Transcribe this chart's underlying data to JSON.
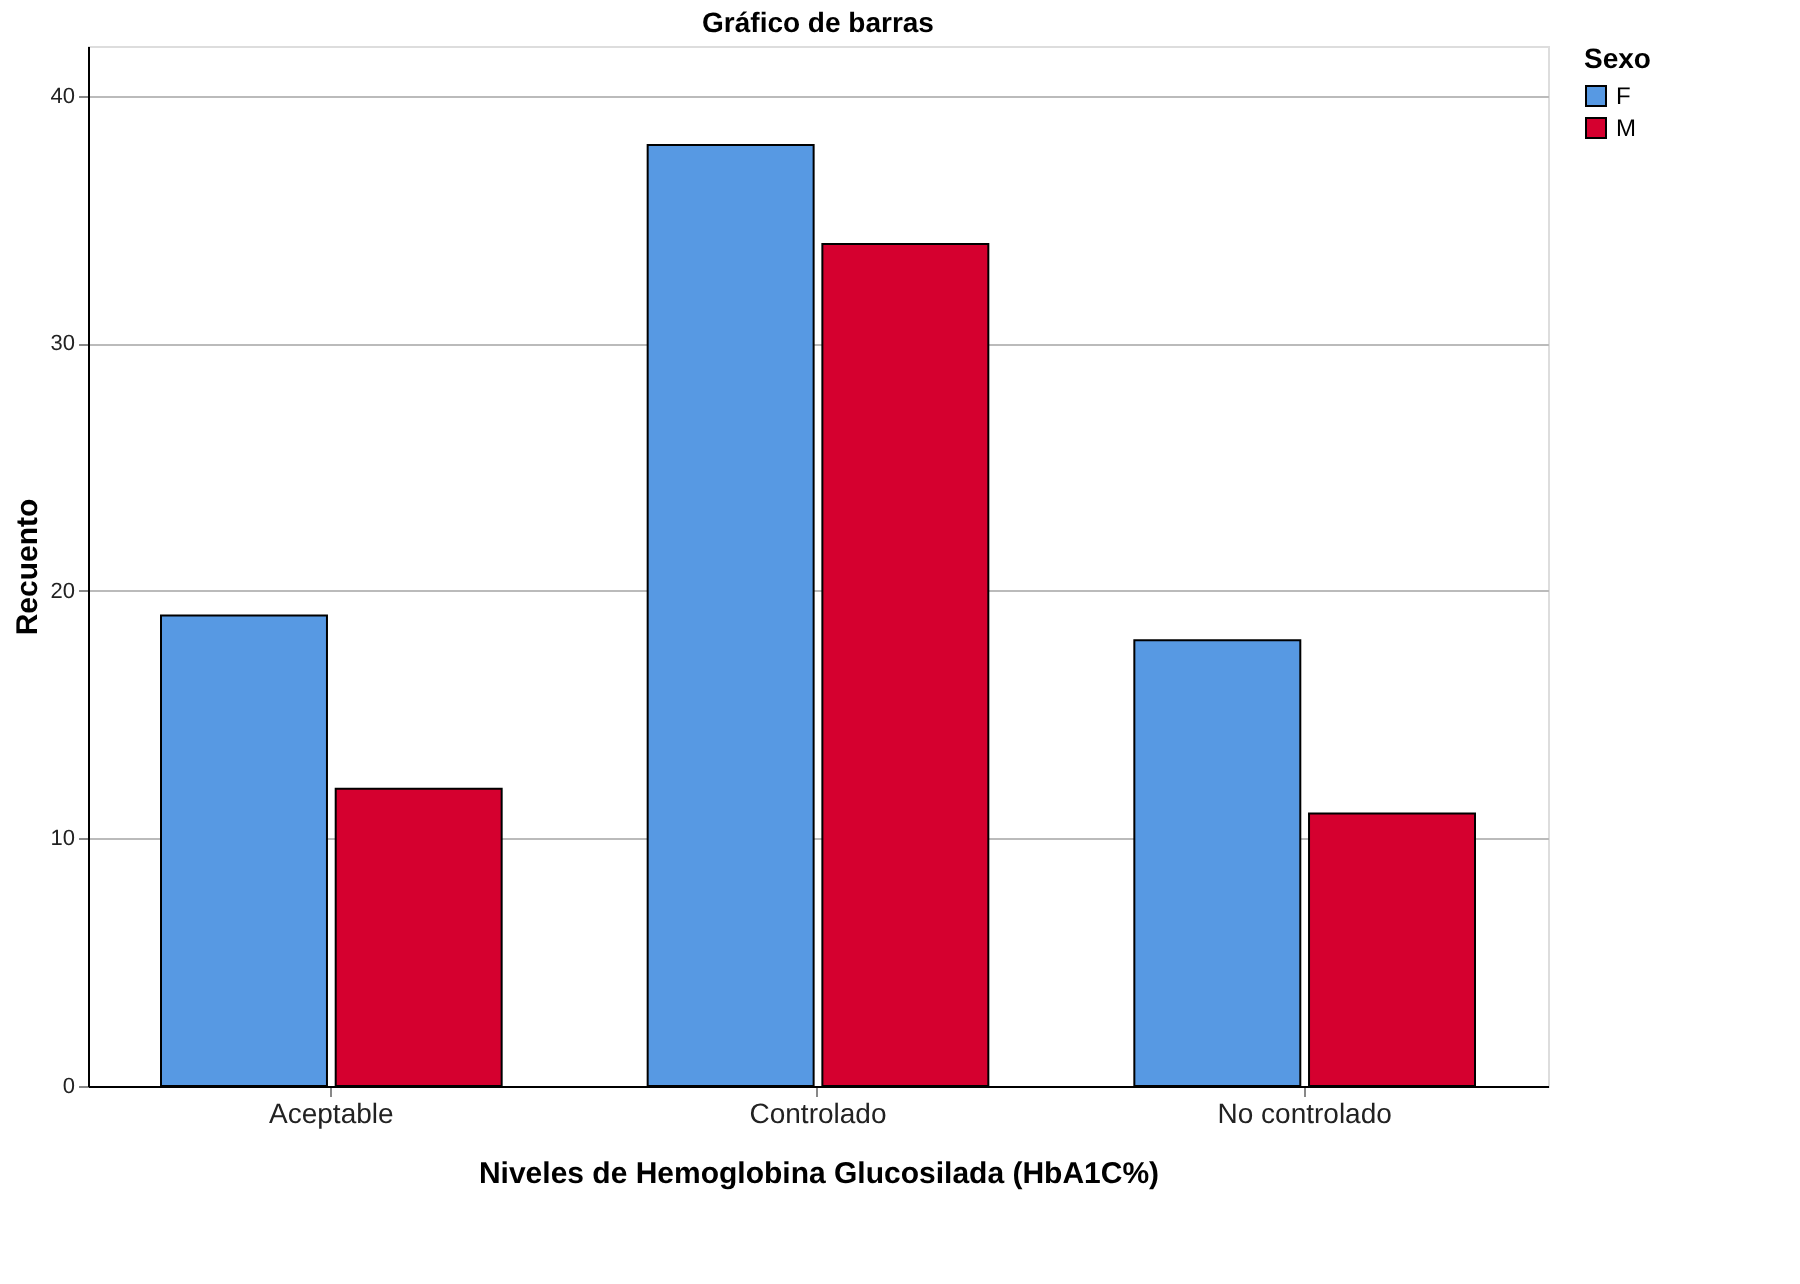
{
  "chart_data": {
    "type": "bar",
    "title": "Gráfico de barras",
    "xlabel": "Niveles de Hemoglobina Glucosilada (HbA1C%)",
    "ylabel": "Recuento",
    "legend_title": "Sexo",
    "categories": [
      "Aceptable",
      "Controlado",
      "No controlado"
    ],
    "series": [
      {
        "name": "F",
        "color": "#5799e3",
        "values": [
          19,
          38,
          18
        ]
      },
      {
        "name": "M",
        "color": "#d5002f",
        "values": [
          12,
          34,
          11
        ]
      }
    ],
    "ylim": [
      0,
      42
    ],
    "yticks": [
      0,
      10,
      20,
      30,
      40
    ],
    "grid": "y",
    "legend": "top right"
  }
}
